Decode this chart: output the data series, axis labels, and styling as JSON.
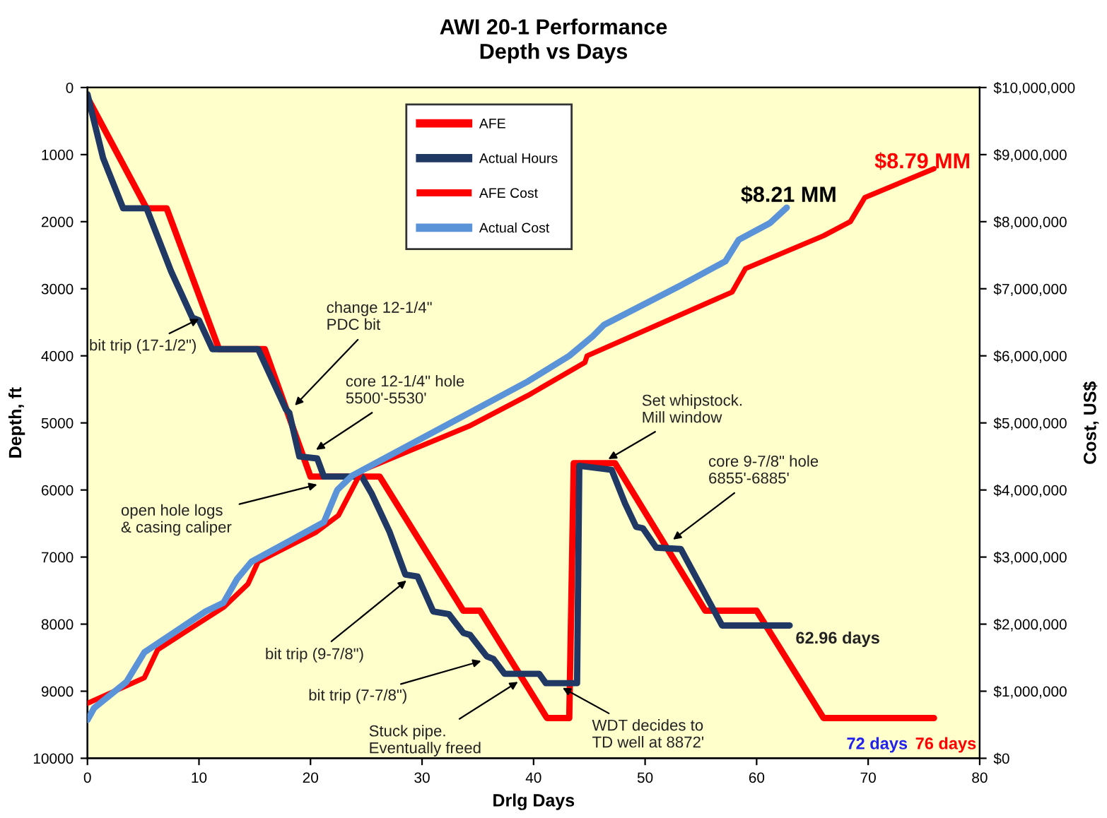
{
  "chart_data": {
    "type": "line",
    "title": "AWI 20-1 Performance",
    "subtitle": "Depth vs Days",
    "xlabel": "Drlg Days",
    "ylabel": "Depth, ft",
    "y2label": "Cost, US$",
    "xlim": [
      0,
      80
    ],
    "xticks": [
      0,
      10,
      20,
      30,
      40,
      50,
      60,
      70,
      80
    ],
    "ylim": [
      10000,
      0
    ],
    "yticks": [
      0,
      1000,
      2000,
      3000,
      4000,
      5000,
      6000,
      7000,
      8000,
      9000,
      10000
    ],
    "y2lim": [
      0,
      10000000
    ],
    "y2ticks": [
      {
        "value": 0,
        "label": "$0"
      },
      {
        "value": 1000000,
        "label": "$1,000,000"
      },
      {
        "value": 2000000,
        "label": "$2,000,000"
      },
      {
        "value": 3000000,
        "label": "$3,000,000"
      },
      {
        "value": 4000000,
        "label": "$4,000,000"
      },
      {
        "value": 5000000,
        "label": "$5,000,000"
      },
      {
        "value": 6000000,
        "label": "$6,000,000"
      },
      {
        "value": 7000000,
        "label": "$7,000,000"
      },
      {
        "value": 8000000,
        "label": "$8,000,000"
      },
      {
        "value": 9000000,
        "label": "$9,000,000"
      },
      {
        "value": 10000000,
        "label": "$10,000,000"
      }
    ],
    "grid": false,
    "legend": "top",
    "marker": "none",
    "line_style": "solid",
    "series": [
      {
        "name": "AFE",
        "color": "#ff0000",
        "x": [
          0,
          5.3,
          7.1,
          11.8,
          15.9,
          20,
          26.2,
          33.7,
          35.2,
          41.2,
          43.2,
          43.6,
          47.3,
          55.4,
          60,
          66,
          75.9
        ],
        "values": [
          150,
          1800,
          1800,
          3900,
          3900,
          5800,
          5800,
          7800,
          7800,
          9400,
          9400,
          5600,
          5600,
          7800,
          7800,
          9400,
          9400
        ]
      },
      {
        "name": "Actual Hours",
        "color": "#1f3864",
        "x": [
          0,
          1.4,
          3.2,
          5.3,
          7.5,
          9.4,
          10.0,
          11.2,
          15.3,
          17.8,
          18.1,
          19.0,
          20.6,
          21.2,
          24.6,
          25.5,
          27.1,
          28.5,
          29.6,
          31.0,
          32.4,
          33.7,
          34.3,
          35.8,
          36.4,
          37.4,
          40.5,
          41.1,
          43.9,
          44.1,
          47.0,
          48.2,
          49.2,
          49.8,
          51.0,
          53.2,
          56.9,
          62.96
        ],
        "values": [
          100,
          1050,
          1800,
          1800,
          2740,
          3430,
          3470,
          3900,
          3900,
          4800,
          4850,
          5500,
          5530,
          5800,
          5800,
          6060,
          6630,
          7260,
          7290,
          7810,
          7850,
          8130,
          8160,
          8480,
          8520,
          8740,
          8740,
          8880,
          8880,
          5640,
          5700,
          6200,
          6550,
          6570,
          6860,
          6880,
          8020,
          8020
        ]
      },
      {
        "name": "AFE Cost",
        "color": "#ff0000",
        "axis": "y2",
        "x": [
          0,
          5.1,
          6.3,
          12.2,
          14.4,
          15.3,
          20.5,
          22.5,
          24.6,
          34.2,
          39.5,
          44.6,
          44.8,
          57.8,
          59,
          66,
          68.4,
          69.7,
          75.9
        ],
        "values": [
          820000,
          1200000,
          1620000,
          2250000,
          2600000,
          2930000,
          3370000,
          3620000,
          4290000,
          4950000,
          5410000,
          5900000,
          6000000,
          6950000,
          7300000,
          7790000,
          8000000,
          8360000,
          8790000
        ]
      },
      {
        "name": "Actual Cost",
        "color": "#5b93d8",
        "axis": "y2",
        "x": [
          0,
          0.6,
          3.5,
          5.1,
          10.6,
          12.2,
          13.4,
          14.7,
          21.2,
          22.4,
          23.7,
          39.5,
          43.2,
          45.3,
          46.3,
          53.2,
          57.2,
          58.4,
          61.2,
          62.7
        ],
        "values": [
          570000,
          750000,
          1140000,
          1580000,
          2190000,
          2320000,
          2670000,
          2930000,
          3520000,
          4000000,
          4210000,
          5620000,
          6000000,
          6290000,
          6460000,
          7050000,
          7410000,
          7730000,
          7980000,
          8210000
        ]
      }
    ],
    "annotations": [
      {
        "text": "bit trip (17-1/2\")",
        "x": 10,
        "y": 3450
      },
      {
        "text": "change 12-1/4\"\nPDC bit",
        "x": 18.6,
        "y": 4740
      },
      {
        "text": "core 12-1/4\" hole\n5500'-5530'",
        "x": 20.5,
        "y": 5400
      },
      {
        "text": "open hole logs\n& casing caliper",
        "x": 20.6,
        "y": 5920
      },
      {
        "text": "bit trip (9-7/8\")",
        "x": 28.6,
        "y": 7350
      },
      {
        "text": "bit trip (7-7/8\")",
        "x": 35.3,
        "y": 8550
      },
      {
        "text": "Stuck pipe.\nEventually freed",
        "x": 38.6,
        "y": 8860
      },
      {
        "text": "WDT decides to\nTD well at 8872'",
        "x": 42.6,
        "y": 8950
      },
      {
        "text": "Set whipstock.\nMill window",
        "x": 46.7,
        "y": 5540
      },
      {
        "text": "core 9-7/8\" hole\n6855'-6885'",
        "x": 52.5,
        "y": 6740
      },
      {
        "text": "62.96 days",
        "x": 62.96,
        "y": 8020
      },
      "$8.21 MM",
      "$8.79 MM",
      "72 days",
      "76 days"
    ]
  }
}
